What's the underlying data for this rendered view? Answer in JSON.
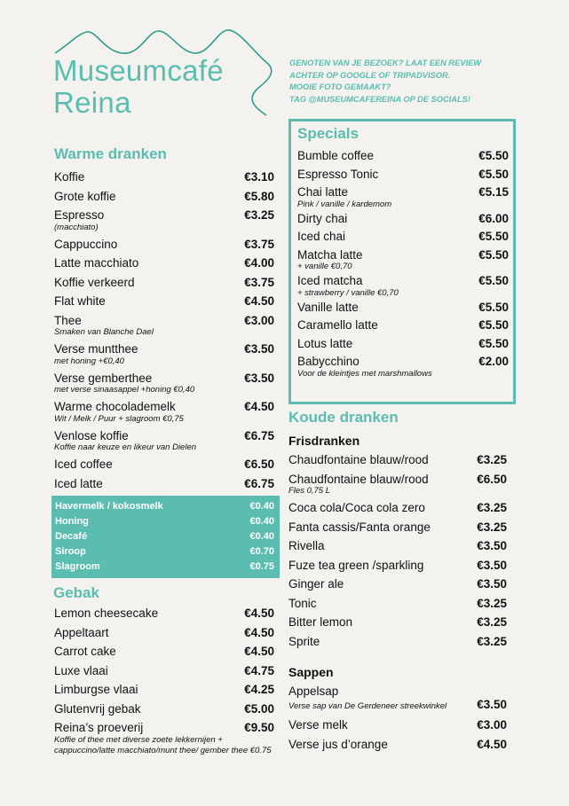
{
  "header": {
    "title_line1": "Museumcafé",
    "title_line2": "Reina",
    "promo": [
      "Genoten van je bezoek? Laat een review",
      "achter op Google of Tripadvisor.",
      "Mooie foto gemaakt?",
      "Tag @museumcafereina op de socials!"
    ]
  },
  "colors": {
    "accent": "#5bbdb0",
    "background": "#f3f2ee"
  },
  "warm": {
    "title": "Warme dranken",
    "items": [
      {
        "name": "Koffie",
        "price": "€3.10"
      },
      {
        "name": "Grote koffie",
        "price": "€5.80"
      },
      {
        "name": "Espresso",
        "price": "€3.25",
        "sub": "(macchiato)"
      },
      {
        "name": "Cappuccino",
        "price": "€3.75"
      },
      {
        "name": "Latte macchiato",
        "price": "€4.00"
      },
      {
        "name": "Koffie verkeerd",
        "price": "€3.75"
      },
      {
        "name": "Flat white",
        "price": "€4.50"
      },
      {
        "name": "Thee",
        "price": "€3.00",
        "sub": "Smaken van Blanche Dael"
      },
      {
        "name": "Verse muntthee",
        "price": "€3.50",
        "sub": "met honing +€0,40"
      },
      {
        "name": "Verse gemberthee",
        "price": "€3.50",
        "sub": "met verse sinaasappel +honing €0,40"
      },
      {
        "name": "Warme chocolademelk",
        "price": "€4.50",
        "sub": "Wit / Melk / Puur + slagroom €0,75"
      },
      {
        "name": "Venlose koffie",
        "price": "€6.75",
        "sub": "Koffie naar keuze en likeur van Dielen"
      },
      {
        "name": "Iced coffee",
        "price": "€6.50"
      },
      {
        "name": "Iced latte",
        "price": "€6.75"
      }
    ],
    "extras": [
      {
        "name": "Havermelk / kokosmelk",
        "price": "€0.40"
      },
      {
        "name": "Honing",
        "price": "€0.40"
      },
      {
        "name": "Decafé",
        "price": "€0.40"
      },
      {
        "name": "Siroop",
        "price": "€0.70"
      },
      {
        "name": "Slagroom",
        "price": "€0.75"
      }
    ]
  },
  "gebak": {
    "title": "Gebak",
    "items": [
      {
        "name": "Lemon cheesecake",
        "price": "€4.50"
      },
      {
        "name": "Appeltaart",
        "price": "€4.50"
      },
      {
        "name": "Carrot cake",
        "price": "€4.50"
      },
      {
        "name": "Luxe vlaai",
        "price": "€4.75"
      },
      {
        "name": "Limburgse vlaai",
        "price": "€4.25"
      },
      {
        "name": "Glutenvrij gebak",
        "price": "€5.00"
      },
      {
        "name": "Reina’s proeverij",
        "price": "€9.50",
        "sub": "Koffie of thee met diverse zoete lekkernijen + cappuccino/latte macchiato/munt thee/ gember thee €0.75"
      }
    ]
  },
  "specials": {
    "title": "Specials",
    "items": [
      {
        "name": "Bumble coffee",
        "price": "€5.50"
      },
      {
        "name": "Espresso Tonic",
        "price": "€5.50"
      },
      {
        "name": "Chai latte",
        "price": "€5.15",
        "sub": "Pink / vanille / kardemom"
      },
      {
        "name": "Dirty chai",
        "price": "€6.00"
      },
      {
        "name": "Iced chai",
        "price": "€5.50"
      },
      {
        "name": "Matcha latte",
        "price": "€5.50",
        "sub": "+ vanille €0,70"
      },
      {
        "name": "Iced matcha",
        "price": "€5.50",
        "sub": "+ strawberry / vanille €0,70"
      },
      {
        "name": "Vanille latte",
        "price": "€5.50"
      },
      {
        "name": "Caramello latte",
        "price": "€5.50"
      },
      {
        "name": "Lotus latte",
        "price": "€5.50"
      },
      {
        "name": "Babycchino",
        "price": "€2.00",
        "sub": "Voor de kleintjes met marshmallows"
      }
    ]
  },
  "koud": {
    "title": "Koude dranken",
    "fris": {
      "title": "Frisdranken",
      "items": [
        {
          "name": "Chaudfontaine blauw/rood",
          "price": "€3.25"
        },
        {
          "name": "Chaudfontaine blauw/rood",
          "price": "€6.50",
          "sub": "Fles 0,75 L"
        },
        {
          "name": "Coca cola/Coca cola zero",
          "price": "€3.25"
        },
        {
          "name": "Fanta cassis/Fanta orange",
          "price": "€3.25"
        },
        {
          "name": "Rivella",
          "price": "€3.50"
        },
        {
          "name": "Fuze tea green /sparkling",
          "price": "€3.50"
        },
        {
          "name": "Ginger ale",
          "price": "€3.50"
        },
        {
          "name": "Tonic",
          "price": "€3.25"
        },
        {
          "name": "Bitter lemon",
          "price": "€3.25"
        },
        {
          "name": "Sprite",
          "price": "€3.25"
        }
      ]
    },
    "sappen": {
      "title": "Sappen",
      "items": [
        {
          "name": "Appelsap",
          "price": "€3.50",
          "sub": "Verse sap van De Gerdeneer streekwinkel"
        },
        {
          "name": "Verse melk",
          "price": "€3.00"
        },
        {
          "name": "Verse jus d’orange",
          "price": "€4.50"
        }
      ]
    }
  }
}
